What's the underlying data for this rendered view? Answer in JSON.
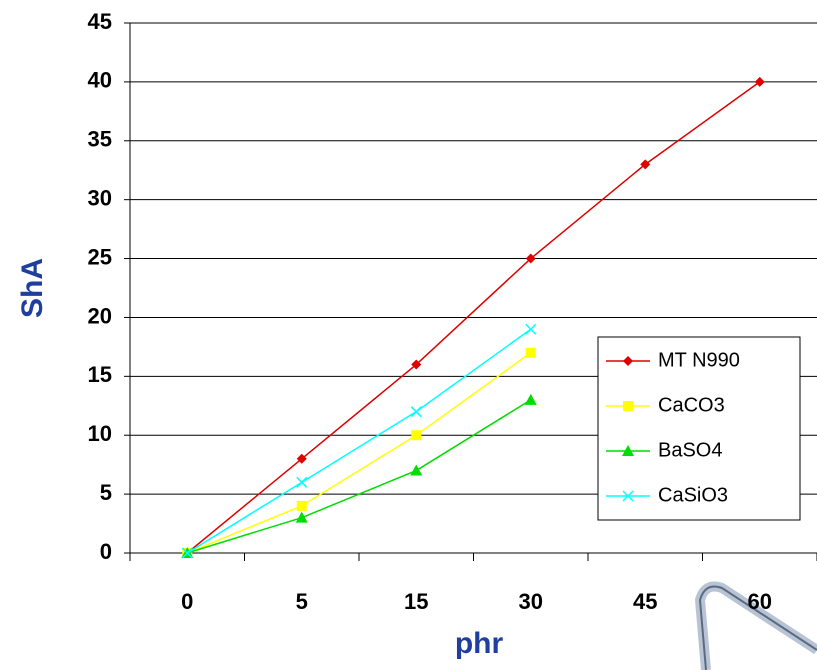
{
  "chart_data": {
    "type": "line",
    "x_label": "phr",
    "y_label": "ShA",
    "categories": [
      "0",
      "5",
      "15",
      "30",
      "45",
      "60"
    ],
    "series": [
      {
        "name": "MT N990",
        "color": "#e00000",
        "marker": "diamond",
        "values": [
          0,
          8,
          16,
          25,
          33,
          40
        ]
      },
      {
        "name": "CaCO3",
        "color": "#ffff00",
        "marker": "square",
        "values": [
          0,
          4,
          10,
          17,
          null,
          null
        ]
      },
      {
        "name": "BaSO4",
        "color": "#00dd00",
        "marker": "triangle",
        "values": [
          0,
          3,
          7,
          13,
          null,
          null
        ]
      },
      {
        "name": "CaSiO3",
        "color": "#00ffff",
        "marker": "x",
        "values": [
          0,
          6,
          12,
          19,
          null,
          null
        ]
      }
    ],
    "ylim": [
      0,
      45
    ],
    "yticks": [
      0,
      5,
      10,
      15,
      20,
      25,
      30,
      35,
      40,
      45
    ],
    "grid": true,
    "legend": "right"
  }
}
